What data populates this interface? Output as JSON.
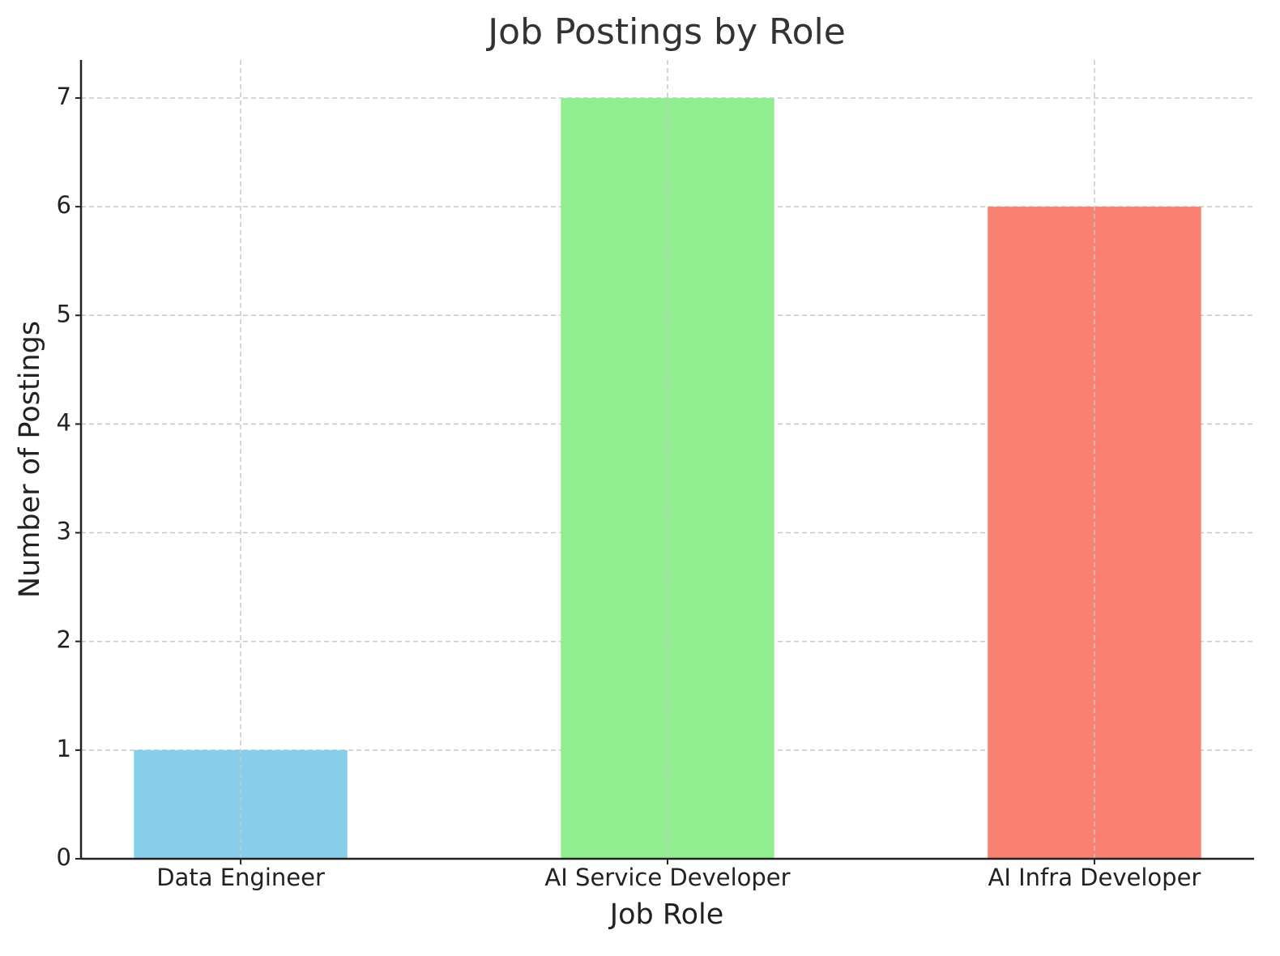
{
  "chart_data": {
    "type": "bar",
    "title": "Job Postings by Role",
    "x_label": "Job Role",
    "y_label": "Number of Postings",
    "categories": [
      "Data Engineer",
      "AI Service Developer",
      "AI Infra Developer"
    ],
    "values": [
      1,
      7,
      6
    ],
    "colors": [
      "#87ceeb",
      "#90ee90",
      "#fa8072"
    ],
    "ylim": [
      0,
      7.35
    ],
    "yticks": [
      0,
      1,
      2,
      3,
      4,
      5,
      6,
      7
    ],
    "grid": true
  }
}
